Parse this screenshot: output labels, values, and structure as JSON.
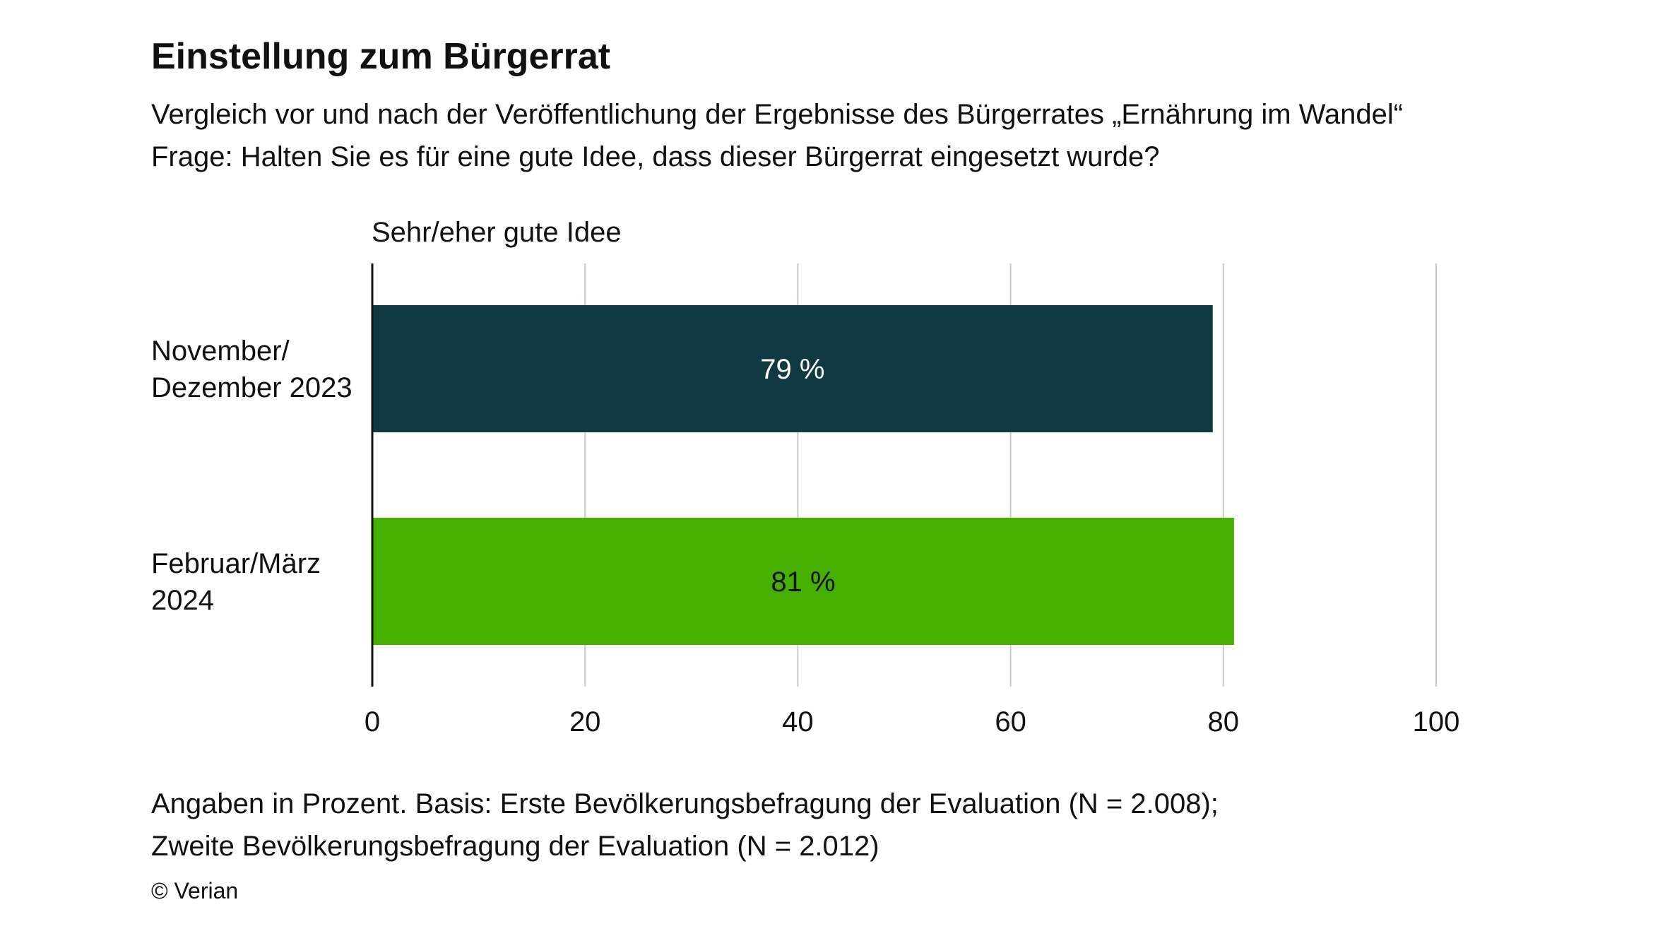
{
  "chart_data": {
    "type": "bar",
    "orientation": "horizontal",
    "title": "Einstellung zum Bürgerrat",
    "subtitle_lines": [
      "Vergleich vor und nach der Veröffentlichung der Ergebnisse des Bürgerrates „Ernährung im Wandel“",
      "Frage: Halten Sie es für eine gute Idee, dass dieser Bürgerrat eingesetzt wurde?"
    ],
    "series_header": "Sehr/eher gute Idee",
    "categories": [
      [
        "November/",
        "Dezember 2023"
      ],
      [
        "Februar/März",
        "2024"
      ]
    ],
    "values": [
      79,
      81
    ],
    "value_labels": [
      "79 %",
      "81 %"
    ],
    "bar_colors": [
      "#113943",
      "#45b000"
    ],
    "value_label_colors": [
      "#ffffff",
      "#111111"
    ],
    "xlim": [
      0,
      100
    ],
    "xticks": [
      0,
      20,
      40,
      60,
      80,
      100
    ],
    "grid": true,
    "legend": "none"
  },
  "footer": {
    "note_lines": [
      "Angaben in Prozent. Basis: Erste Bevölkerungsbefragung der Evaluation (N = 2.008);",
      "Zweite Bevölkerungsbefragung der Evaluation (N = 2.012)"
    ],
    "copyright": "© Verian"
  }
}
